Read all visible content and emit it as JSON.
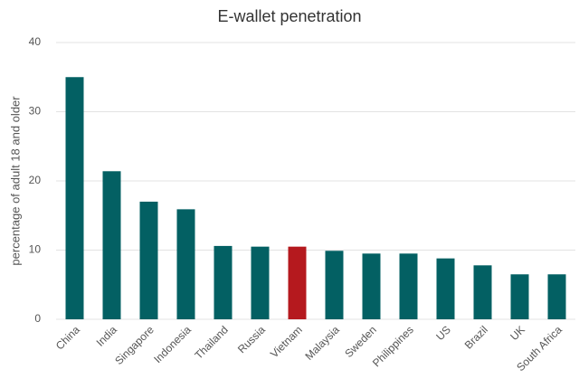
{
  "chart_data": {
    "type": "bar",
    "title": "E-wallet penetration",
    "y_label": "percentage of adult 18 and older",
    "categories": [
      "China",
      "India",
      "Singapore",
      "Indonesia",
      "Thailand",
      "Russia",
      "Vietnam",
      "Malaysia",
      "Sweden",
      "Philippines",
      "US",
      "Brazil",
      "UK",
      "South Africa"
    ],
    "values": [
      35,
      21.4,
      17,
      15.9,
      10.6,
      10.5,
      10.5,
      9.9,
      9.5,
      9.5,
      8.8,
      7.8,
      6.5,
      6.5
    ],
    "colors": [
      "#036063",
      "#036063",
      "#036063",
      "#036063",
      "#036063",
      "#036063",
      "#b5191e",
      "#036063",
      "#036063",
      "#036063",
      "#036063",
      "#036063",
      "#036063",
      "#036063"
    ],
    "ylim": [
      0,
      40
    ],
    "yticks": [
      0,
      10,
      20,
      30,
      40
    ],
    "grid": true
  }
}
